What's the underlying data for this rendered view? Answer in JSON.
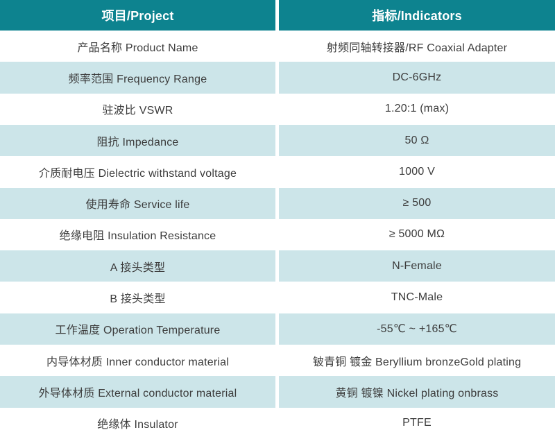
{
  "table": {
    "colors": {
      "header_bg": "#0d838f",
      "header_text": "#ffffff",
      "alt_row_bg": "#cce5e9",
      "row_bg": "#ffffff",
      "cell_text": "#3c3c3c"
    },
    "columns": {
      "project": "项目/Project",
      "indicators": "指标/Indicators"
    },
    "rows": [
      {
        "project": "产品名称 Product Name",
        "indicator": "射频同轴转接器/RF Coaxial Adapter"
      },
      {
        "project": "频率范围 Frequency Range",
        "indicator": "DC-6GHz"
      },
      {
        "project": "驻波比 VSWR",
        "indicator": "1.20:1 (max)"
      },
      {
        "project": "阻抗 Impedance",
        "indicator": "50 Ω"
      },
      {
        "project": "介质耐电压 Dielectric withstand voltage",
        "indicator": "1000 V"
      },
      {
        "project": "使用寿命 Service life",
        "indicator": "≥ 500"
      },
      {
        "project": "绝缘电阻 Insulation Resistance",
        "indicator": "≥ 5000 MΩ"
      },
      {
        "project": "A 接头类型",
        "indicator": "N-Female"
      },
      {
        "project": "B 接头类型",
        "indicator": "TNC-Male"
      },
      {
        "project": "工作温度 Operation Temperature",
        "indicator": "-55℃ ~ +165℃"
      },
      {
        "project": "内导体材质 Inner conductor material",
        "indicator": "铍青铜 镀金 Beryllium bronzeGold plating"
      },
      {
        "project": "外导体材质 External conductor material",
        "indicator": "黄铜 镀镍 Nickel plating onbrass"
      },
      {
        "project": "绝缘体 Insulator",
        "indicator": "PTFE"
      }
    ]
  }
}
